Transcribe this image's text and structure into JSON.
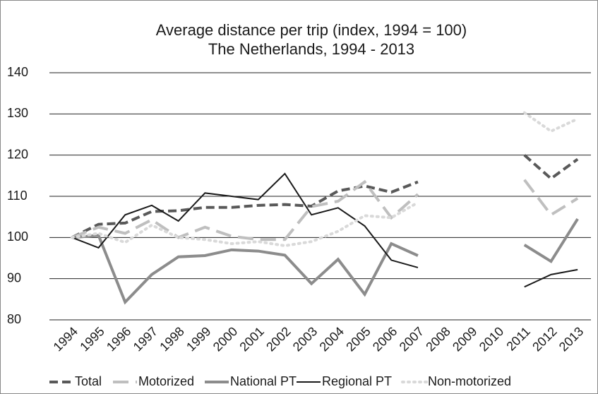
{
  "chart_data": {
    "type": "line",
    "title": "Average distance per trip (index, 1994 = 100)",
    "subtitle": "The Netherlands, 1994 - 2013",
    "categories": [
      "1994",
      "1995",
      "1996",
      "1997",
      "1998",
      "1999",
      "2000",
      "2001",
      "2002",
      "2003",
      "2004",
      "2005",
      "2006",
      "2007",
      "2008",
      "2009",
      "2010",
      "2011",
      "2012",
      "2013"
    ],
    "series": [
      {
        "name": "Total",
        "color": "#595959",
        "line_style": "dashed",
        "line_width": 4,
        "values": [
          100,
          103.2,
          103.5,
          106.3,
          106.5,
          107.3,
          107.3,
          107.8,
          108,
          107.6,
          111.3,
          112.5,
          111,
          113.5,
          null,
          null,
          null,
          120,
          114.3,
          119
        ]
      },
      {
        "name": "Motorized",
        "color": "#bfbfbf",
        "line_style": "long-dashed",
        "line_width": 4,
        "values": [
          100,
          102.5,
          101,
          104.3,
          100,
          102.5,
          100.3,
          99.5,
          99.5,
          107.5,
          108.8,
          113.5,
          104.8,
          110.5,
          null,
          null,
          null,
          114,
          105.5,
          109.5
        ]
      },
      {
        "name": "National PT",
        "color": "#8c8c8c",
        "line_style": "solid",
        "line_width": 4,
        "values": [
          100,
          100.5,
          84.3,
          91,
          95.3,
          95.6,
          97,
          96.7,
          95.7,
          88.8,
          94.7,
          86.2,
          98.5,
          95.6,
          null,
          null,
          null,
          98.2,
          94.2,
          104.5
        ]
      },
      {
        "name": "Regional PT",
        "color": "#1a1a1a",
        "line_style": "solid",
        "line_width": 2,
        "values": [
          100,
          97.5,
          105.5,
          107.8,
          104,
          110.8,
          110,
          109.2,
          115.5,
          105.5,
          107.2,
          102.8,
          94.5,
          92.7,
          null,
          null,
          null,
          88,
          91,
          92.2
        ]
      },
      {
        "name": "Non-motorized",
        "color": "#d9d9d9",
        "line_style": "dotted",
        "line_width": 4,
        "values": [
          100,
          101,
          98.8,
          103,
          100,
          99.5,
          98.5,
          99,
          98,
          99,
          101.5,
          105.3,
          104.8,
          108.5,
          null,
          null,
          null,
          130.3,
          125.8,
          128.8
        ]
      }
    ],
    "ylim": [
      80,
      140
    ],
    "yticks": [
      80,
      90,
      100,
      110,
      120,
      130,
      140
    ],
    "grid": true,
    "legend": "bottom"
  }
}
